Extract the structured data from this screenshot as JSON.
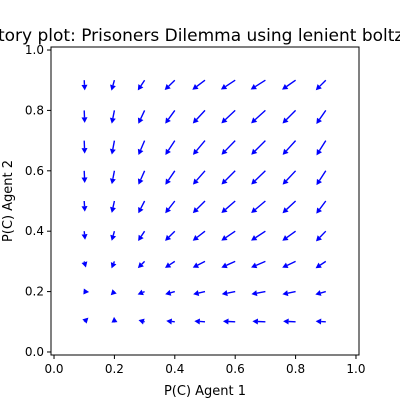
{
  "chart_data": {
    "type": "quiver",
    "title": "Trajectory plot: Prisoners Dilemma using lenient boltzmann",
    "xlabel": "P(C) Agent 1",
    "ylabel": "P(C) Agent 2",
    "xlim": [
      -0.01,
      1.01
    ],
    "ylim": [
      -0.01,
      1.01
    ],
    "xticks": [
      0.0,
      0.2,
      0.4,
      0.6,
      0.8,
      1.0
    ],
    "yticks": [
      0.0,
      0.2,
      0.4,
      0.6,
      0.8,
      1.0
    ],
    "xtick_labels": [
      "0.0",
      "0.2",
      "0.4",
      "0.6",
      "0.8",
      "1.0"
    ],
    "ytick_labels": [
      "0.0",
      "0.2",
      "0.4",
      "0.6",
      "0.8",
      "1.0"
    ],
    "grid": false,
    "arrow_color": "#0000ff",
    "grid_x": [
      0.1,
      0.2,
      0.3,
      0.4,
      0.5,
      0.6,
      0.7,
      0.8,
      0.9
    ],
    "grid_y": [
      0.1,
      0.2,
      0.3,
      0.4,
      0.5,
      0.6,
      0.7,
      0.8,
      0.9
    ]
  }
}
